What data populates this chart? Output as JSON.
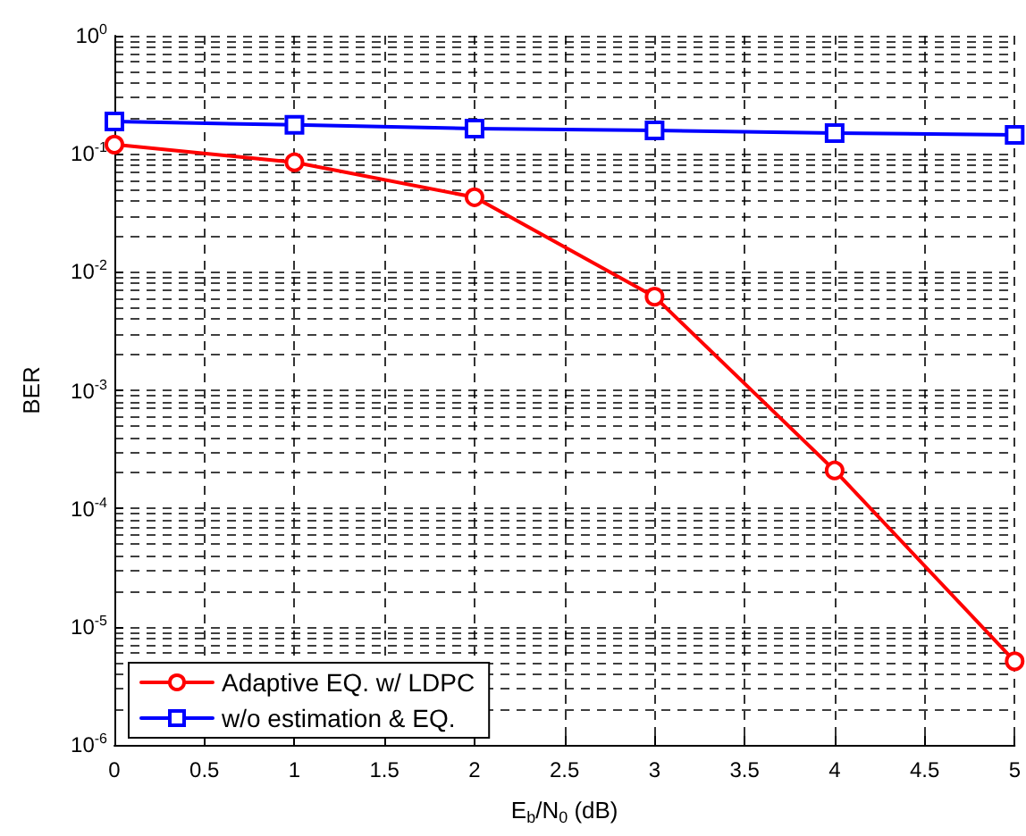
{
  "chart_data": {
    "type": "line",
    "xlabel": "E$_{b}$/N$_{0}$ (dB)",
    "ylabel": "BER",
    "log": "y",
    "grid": true,
    "legend": "bottom left",
    "line_style": "solid",
    "x": [
      0,
      1,
      2,
      3,
      4,
      5
    ],
    "xlim": [
      0,
      5
    ],
    "xticks": [
      0,
      0.5,
      1,
      1.5,
      2,
      2.5,
      3,
      3.5,
      4,
      4.5,
      5
    ],
    "ylim": [
      1e-06,
      1
    ],
    "yticks": [
      {
        "value": 1e-06,
        "label": "10$^{-6}$"
      },
      {
        "value": 1e-05,
        "label": "10$^{-5}$"
      },
      {
        "value": 0.0001,
        "label": "10$^{-4}$"
      },
      {
        "value": 0.001,
        "label": "10$^{-3}$"
      },
      {
        "value": 0.01,
        "label": "10$^{-2}$"
      },
      {
        "value": 0.1,
        "label": "10$^{-1}$"
      },
      {
        "value": 1,
        "label": "10$^{0}$"
      }
    ],
    "series": [
      {
        "name": "Adaptive EQ. w/ LDPC",
        "color": "#ff0000",
        "marker": "circle",
        "values": [
          0.12,
          0.085,
          0.043,
          0.0062,
          0.00021,
          5.1e-06
        ]
      },
      {
        "name": "w/o estimation & EQ.",
        "color": "#0000ff",
        "marker": "square",
        "values": [
          0.188,
          0.176,
          0.164,
          0.158,
          0.15,
          0.145
        ]
      }
    ]
  }
}
